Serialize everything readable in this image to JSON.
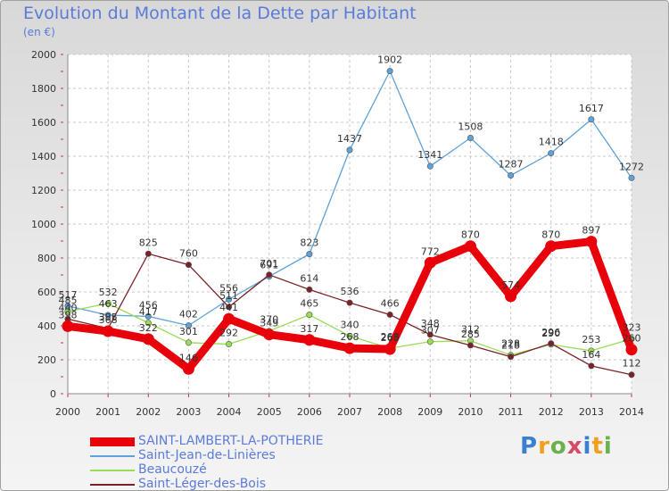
{
  "title": "Evolution du Montant de la Dette par Habitant",
  "unit_label": "(en €)",
  "brand": {
    "text": "Proxiti",
    "letter_colors": [
      "#3a7fd0",
      "#f0a020",
      "#6ab04c",
      "#d64a6a",
      "#3a7fd0",
      "#f0a020",
      "#6ab04c"
    ]
  },
  "chart_data": {
    "type": "line",
    "title": "Evolution du Montant de la Dette par Habitant",
    "ylabel": "(en €)",
    "xlabel": "",
    "x": [
      "2000",
      "2001",
      "2002",
      "2003",
      "2004",
      "2005",
      "2006",
      "2007",
      "2008",
      "2009",
      "2010",
      "2011",
      "2012",
      "2013",
      "2014"
    ],
    "ylim": [
      0,
      2000
    ],
    "yticks": [
      0,
      200,
      400,
      600,
      800,
      1000,
      1200,
      1400,
      1600,
      1800,
      2000
    ],
    "grid": true,
    "legend_position": "bottom-left",
    "series": [
      {
        "name": "SAINT-LAMBERT-LA-POTHERIE",
        "color": "#e8000b",
        "values": [
          398,
          368,
          322,
          146,
          441,
          349,
          317,
          268,
          263,
          772,
          870,
          574,
          870,
          897,
          260
        ],
        "labels": [
          "398",
          "368",
          "322",
          "146",
          "441",
          "349",
          "317",
          "268",
          "263",
          "772",
          "870",
          "574",
          "870",
          "897",
          "260"
        ]
      },
      {
        "name": "Saint-Jean-de-Linières",
        "color": "#5da2d8",
        "values": [
          517,
          463,
          456,
          402,
          556,
          691,
          823,
          1437,
          1902,
          1341,
          1508,
          1287,
          1418,
          1617,
          1272
        ],
        "labels": [
          "517",
          "463",
          "456",
          "402",
          "556",
          "691",
          "823",
          "1437",
          "1902",
          "1341",
          "1508",
          "1287",
          "1418",
          "1617",
          "1272"
        ]
      },
      {
        "name": "Beaucouzé",
        "color": "#99dd55",
        "values": [
          485,
          532,
          417,
          301,
          292,
          370,
          465,
          340,
          268,
          307,
          312,
          228,
          290,
          253,
          323
        ],
        "labels": [
          "485",
          "532",
          "417",
          "301",
          "292",
          "370",
          "465",
          "340",
          "268",
          "307",
          "312",
          "228",
          "290",
          "253",
          "323"
        ]
      },
      {
        "name": "Saint-Léger-des-Bois",
        "color": "#7a2228",
        "values": [
          440,
          385,
          825,
          760,
          511,
          701,
          614,
          536,
          466,
          348,
          285,
          218,
          296,
          164,
          112
        ],
        "labels": [
          "440",
          "385",
          "825",
          "760",
          "511",
          "701",
          "614",
          "536",
          "466",
          "348",
          "285",
          "218",
          "296",
          "164",
          "112"
        ]
      }
    ]
  }
}
